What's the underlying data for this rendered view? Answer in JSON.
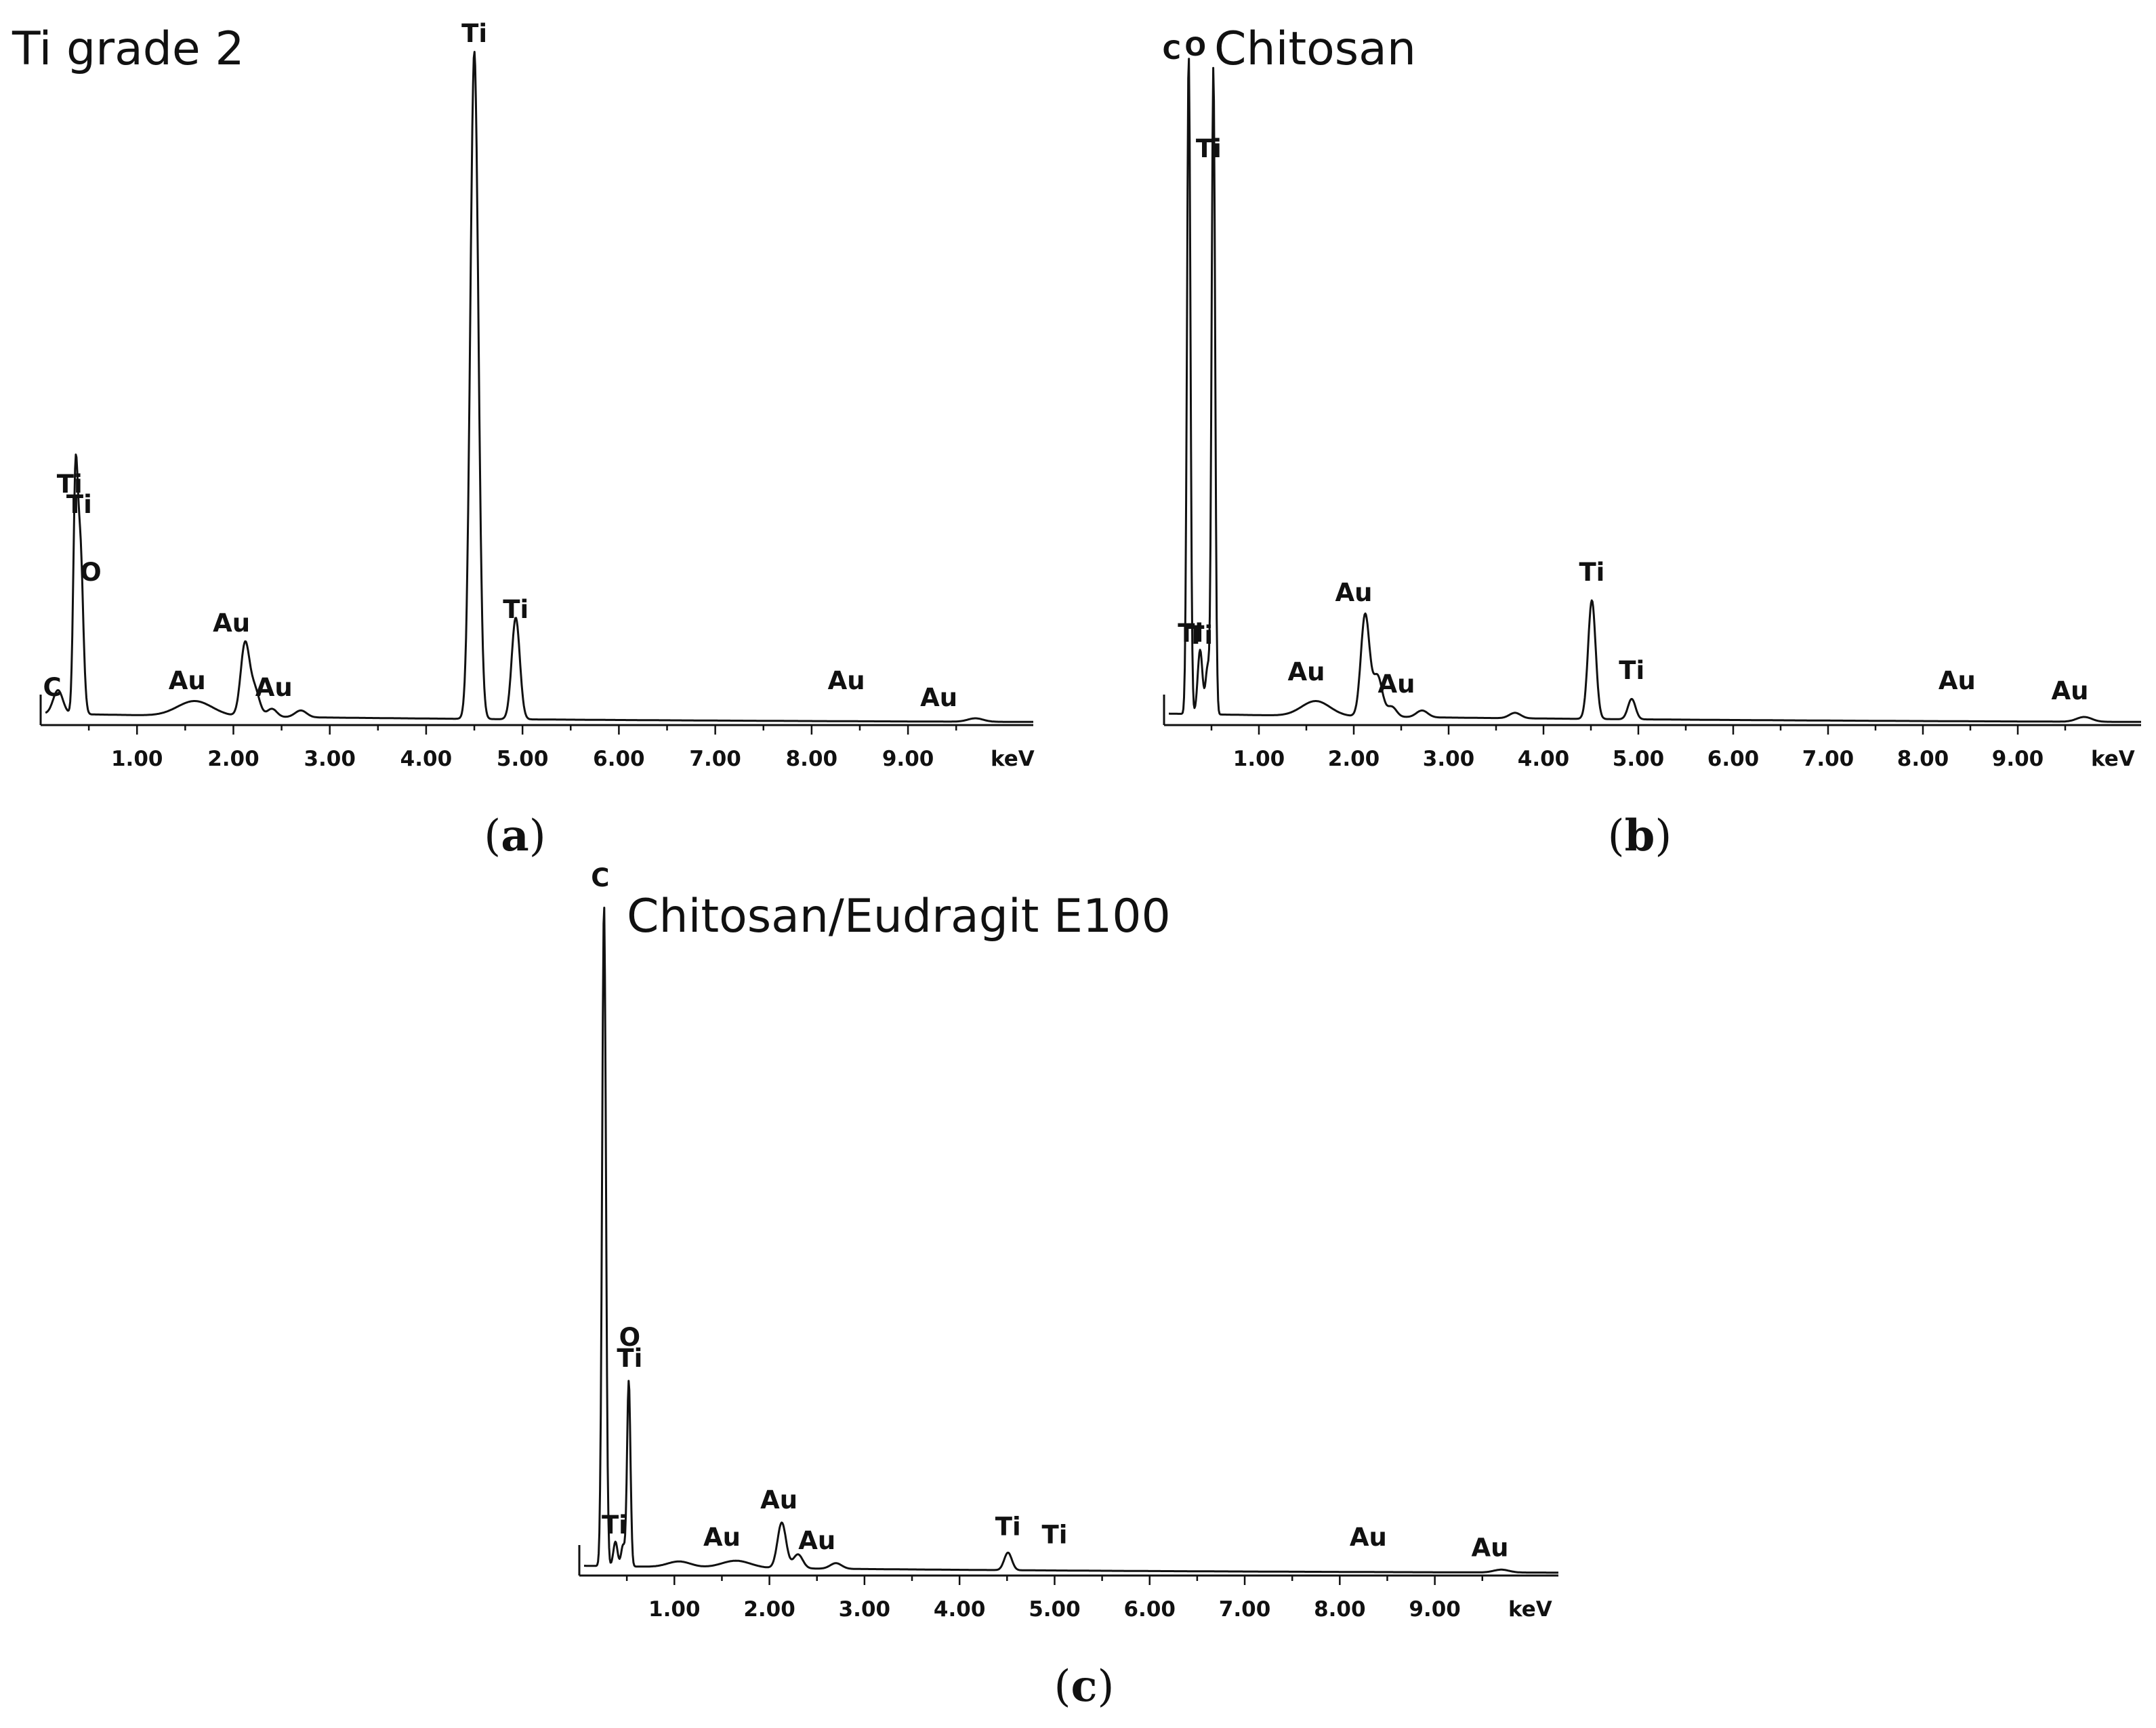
{
  "chart_data": [
    {
      "type": "line",
      "title": "Ti grade 2",
      "caption_letter": "a",
      "xlabel": "keV",
      "xlim": [
        0,
        10.3
      ],
      "ylim": [
        0,
        1.0
      ],
      "x_ticks": [
        1,
        2,
        3,
        4,
        5,
        6,
        7,
        8,
        9
      ],
      "x_tick_labels": [
        "1.00",
        "2.00",
        "3.00",
        "4.00",
        "5.00",
        "6.00",
        "7.00",
        "8.00",
        "9.00"
      ],
      "baseline": 0.015,
      "peaks": [
        {
          "x": 0.18,
          "y": 0.035,
          "w": 0.05
        },
        {
          "x": 0.36,
          "y": 0.31,
          "w": 0.022
        },
        {
          "x": 0.41,
          "y": 0.25,
          "w": 0.03
        },
        {
          "x": 1.6,
          "y": 0.022,
          "w": 0.18
        },
        {
          "x": 2.12,
          "y": 0.105,
          "w": 0.045
        },
        {
          "x": 2.22,
          "y": 0.04,
          "w": 0.05
        },
        {
          "x": 2.4,
          "y": 0.012,
          "w": 0.05
        },
        {
          "x": 2.7,
          "y": 0.01,
          "w": 0.06
        },
        {
          "x": 4.5,
          "y": 0.985,
          "w": 0.042
        },
        {
          "x": 4.93,
          "y": 0.15,
          "w": 0.042
        },
        {
          "x": 9.7,
          "y": 0.005,
          "w": 0.08
        }
      ],
      "labels": [
        {
          "text": "C",
          "x": 0.12,
          "y": 0.035
        },
        {
          "text": "Ti",
          "x": 0.3,
          "y": 0.335
        },
        {
          "text": "Ti",
          "x": 0.4,
          "y": 0.305
        },
        {
          "text": "O",
          "x": 0.52,
          "y": 0.205
        },
        {
          "text": "Au",
          "x": 1.52,
          "y": 0.045
        },
        {
          "text": "Au",
          "x": 1.98,
          "y": 0.13
        },
        {
          "text": "Au",
          "x": 2.42,
          "y": 0.035
        },
        {
          "text": "Ti",
          "x": 4.5,
          "y": 1.0
        },
        {
          "text": "Ti",
          "x": 4.93,
          "y": 0.15
        },
        {
          "text": "Au",
          "x": 8.36,
          "y": 0.045
        },
        {
          "text": "Au",
          "x": 9.32,
          "y": 0.02
        }
      ]
    },
    {
      "type": "line",
      "title": "Chitosan",
      "caption_letter": "b",
      "xlabel": "keV",
      "xlim": [
        0,
        10.3
      ],
      "ylim": [
        0,
        1.0
      ],
      "x_ticks": [
        1,
        2,
        3,
        4,
        5,
        6,
        7,
        8,
        9
      ],
      "x_tick_labels": [
        "1.00",
        "2.00",
        "3.00",
        "4.00",
        "5.00",
        "6.00",
        "7.00",
        "8.00",
        "9.00"
      ],
      "baseline": 0.015,
      "peaks": [
        {
          "x": 0.26,
          "y": 0.975,
          "w": 0.018
        },
        {
          "x": 0.38,
          "y": 0.095,
          "w": 0.025
        },
        {
          "x": 0.46,
          "y": 0.07,
          "w": 0.022
        },
        {
          "x": 0.52,
          "y": 0.955,
          "w": 0.018
        },
        {
          "x": 1.6,
          "y": 0.022,
          "w": 0.15
        },
        {
          "x": 2.12,
          "y": 0.15,
          "w": 0.045
        },
        {
          "x": 2.25,
          "y": 0.06,
          "w": 0.05
        },
        {
          "x": 2.4,
          "y": 0.015,
          "w": 0.05
        },
        {
          "x": 2.72,
          "y": 0.01,
          "w": 0.06
        },
        {
          "x": 3.7,
          "y": 0.008,
          "w": 0.06
        },
        {
          "x": 4.51,
          "y": 0.175,
          "w": 0.04
        },
        {
          "x": 4.93,
          "y": 0.03,
          "w": 0.04
        },
        {
          "x": 9.7,
          "y": 0.007,
          "w": 0.08
        }
      ],
      "labels": [
        {
          "text": "C",
          "x": 0.08,
          "y": 0.975
        },
        {
          "text": "O",
          "x": 0.33,
          "y": 0.98
        },
        {
          "text": "Ti",
          "x": 0.47,
          "y": 0.83
        },
        {
          "text": "Ti",
          "x": 0.28,
          "y": 0.115
        },
        {
          "text": "Ti",
          "x": 0.38,
          "y": 0.112
        },
        {
          "text": "Au",
          "x": 1.5,
          "y": 0.058
        },
        {
          "text": "Au",
          "x": 2.0,
          "y": 0.175
        },
        {
          "text": "Au",
          "x": 2.45,
          "y": 0.04
        },
        {
          "text": "Ti",
          "x": 4.51,
          "y": 0.205
        },
        {
          "text": "Ti",
          "x": 4.93,
          "y": 0.06
        },
        {
          "text": "Au",
          "x": 8.36,
          "y": 0.045
        },
        {
          "text": "Au",
          "x": 9.55,
          "y": 0.03
        }
      ]
    },
    {
      "type": "line",
      "title": "Chitosan/Eudragit E100",
      "caption_letter": "c",
      "xlabel": "keV",
      "xlim": [
        0,
        10.3
      ],
      "ylim": [
        0,
        1.0
      ],
      "x_ticks": [
        1,
        2,
        3,
        4,
        5,
        6,
        7,
        8,
        9
      ],
      "x_tick_labels": [
        "1.00",
        "2.00",
        "3.00",
        "4.00",
        "5.00",
        "6.00",
        "7.00",
        "8.00",
        "9.00"
      ],
      "baseline": 0.012,
      "peaks": [
        {
          "x": 0.26,
          "y": 0.945,
          "w": 0.02
        },
        {
          "x": 0.38,
          "y": 0.035,
          "w": 0.022
        },
        {
          "x": 0.46,
          "y": 0.03,
          "w": 0.02
        },
        {
          "x": 0.52,
          "y": 0.265,
          "w": 0.018
        },
        {
          "x": 1.05,
          "y": 0.008,
          "w": 0.12
        },
        {
          "x": 1.65,
          "y": 0.01,
          "w": 0.15
        },
        {
          "x": 2.13,
          "y": 0.065,
          "w": 0.045
        },
        {
          "x": 2.3,
          "y": 0.02,
          "w": 0.05
        },
        {
          "x": 2.7,
          "y": 0.008,
          "w": 0.06
        },
        {
          "x": 4.51,
          "y": 0.025,
          "w": 0.04
        },
        {
          "x": 9.7,
          "y": 0.004,
          "w": 0.08
        }
      ],
      "labels": [
        {
          "text": "C",
          "x": 0.22,
          "y": 0.975
        },
        {
          "text": "O",
          "x": 0.53,
          "y": 0.32
        },
        {
          "text": "Ti",
          "x": 0.53,
          "y": 0.29
        },
        {
          "text": "Ti",
          "x": 0.37,
          "y": 0.052
        },
        {
          "text": "Au",
          "x": 1.5,
          "y": 0.035
        },
        {
          "text": "Au",
          "x": 2.1,
          "y": 0.088
        },
        {
          "text": "Au",
          "x": 2.5,
          "y": 0.03
        },
        {
          "text": "Ti",
          "x": 4.51,
          "y": 0.05
        },
        {
          "text": "Ti",
          "x": 5.0,
          "y": 0.038
        },
        {
          "text": "Au",
          "x": 8.3,
          "y": 0.035
        },
        {
          "text": "Au",
          "x": 9.58,
          "y": 0.02
        }
      ]
    }
  ]
}
